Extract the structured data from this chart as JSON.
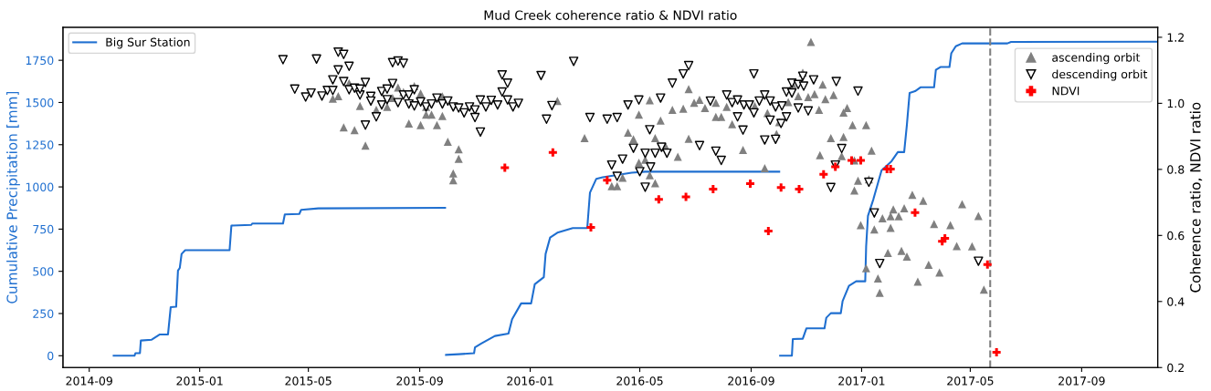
{
  "chart_data": {
    "type": "scatter",
    "title": "Mud Creek coherence ratio & NDVI ratio",
    "ylabel": "Cumulative Precipitation [mm]",
    "y2label": "Coherence ratio, NDVI ratio",
    "xlim": [
      "2014-08-03",
      "2017-11-24"
    ],
    "xticks": [
      {
        "value": "2014-09-01",
        "label": "2014-09"
      },
      {
        "value": "2015-01-01",
        "label": "2015-01"
      },
      {
        "value": "2015-05-01",
        "label": "2015-05"
      },
      {
        "value": "2015-09-01",
        "label": "2015-09"
      },
      {
        "value": "2016-01-01",
        "label": "2016-01"
      },
      {
        "value": "2016-05-01",
        "label": "2016-05"
      },
      {
        "value": "2016-09-01",
        "label": "2016-09"
      },
      {
        "value": "2017-01-01",
        "label": "2017-01"
      },
      {
        "value": "2017-05-01",
        "label": "2017-05"
      },
      {
        "value": "2017-09-01",
        "label": "2017-09"
      }
    ],
    "ylim": [
      -70,
      1945
    ],
    "yticks": [
      0,
      250,
      500,
      750,
      1000,
      1250,
      1500,
      1750
    ],
    "y2lim": [
      0.2,
      1.23
    ],
    "y2ticks": [
      0.2,
      0.4,
      0.6,
      0.8,
      {
        "value": 1.0,
        "label": "1.0"
      },
      1.2
    ],
    "legend": "top right",
    "grid": false,
    "ref_lines": [
      {
        "axis": "x",
        "value": "2017-05-23",
        "label": null,
        "color": "#808080",
        "line_style": "dashed"
      }
    ],
    "series": [
      {
        "name": "Big Sur Station",
        "type": "line",
        "axis": "y",
        "color": "#1f6fd0",
        "marker": "none",
        "line_style": "solid",
        "values": [
          0,
          0,
          15,
          15,
          90,
          95,
          126,
          126,
          288,
          290,
          504,
          520,
          603,
          625,
          625,
          771,
          775,
          783,
          783,
          837,
          840,
          864,
          873,
          876
        ],
        "x": [
          "2014-09-28",
          "2014-10-21",
          "2014-10-22",
          "2014-10-27",
          "2014-10-28",
          "2014-11-09",
          "2014-11-18",
          "2014-11-27",
          "2014-11-30",
          "2014-12-06",
          "2014-12-08",
          "2014-12-10",
          "2014-12-12",
          "2014-12-16",
          "2015-02-03",
          "2015-02-05",
          "2015-02-27",
          "2015-02-28",
          "2015-04-03",
          "2015-04-05",
          "2015-04-21",
          "2015-04-23",
          "2015-05-12",
          "2015-09-29"
        ]
      },
      {
        "type": "line",
        "axis": "y",
        "color": "#1f6fd0",
        "marker": "none",
        "line_style": "solid",
        "x": [
          "2015-09-30",
          "2015-10-14",
          "2015-10-31",
          "2015-11-01",
          "2015-11-08",
          "2015-11-23",
          "2015-12-08",
          "2015-12-12",
          "2015-12-22",
          "2016-01-02",
          "2016-01-06",
          "2016-01-16",
          "2016-01-18",
          "2016-01-23",
          "2016-01-31",
          "2016-02-17",
          "2016-03-04",
          "2016-03-07",
          "2016-03-14",
          "2016-03-21",
          "2016-04-22",
          "2016-05-07",
          "2016-10-02"
        ],
        "values": [
          5,
          9,
          15,
          50,
          72,
          117,
          131,
          216,
          310,
          310,
          423,
          465,
          603,
          700,
          729,
          756,
          756,
          966,
          1048,
          1057,
          1084,
          1090,
          1090
        ]
      },
      {
        "type": "line",
        "axis": "y",
        "color": "#1f6fd0",
        "marker": "none",
        "line_style": "solid",
        "x": [
          "2016-10-03",
          "2016-10-16",
          "2016-10-17",
          "2016-10-28",
          "2016-11-01",
          "2016-11-21",
          "2016-11-23",
          "2016-11-28",
          "2016-12-09",
          "2016-12-11",
          "2016-12-18",
          "2016-12-26",
          "2017-01-05",
          "2017-01-06",
          "2017-01-08",
          "2017-01-14",
          "2017-01-23",
          "2017-02-03",
          "2017-02-10",
          "2017-02-17",
          "2017-02-20",
          "2017-02-23",
          "2017-03-01",
          "2017-03-07",
          "2017-03-22",
          "2017-03-24",
          "2017-03-29",
          "2017-04-08",
          "2017-04-10",
          "2017-04-15",
          "2017-04-22",
          "2017-06-11",
          "2017-06-15",
          "2017-11-24"
        ],
        "values": [
          0,
          0,
          99,
          101,
          162,
          162,
          225,
          252,
          252,
          324,
          414,
          441,
          441,
          648,
          828,
          927,
          1098,
          1152,
          1206,
          1206,
          1368,
          1557,
          1567,
          1590,
          1590,
          1693,
          1710,
          1710,
          1791,
          1833,
          1850,
          1850,
          1859,
          1860
        ]
      },
      {
        "name": "ascending orbit",
        "axis": "y2",
        "color": "#808080",
        "marker": "triangle",
        "x": [
          "2015-05-28",
          "2015-06-03",
          "2015-06-15",
          "2015-06-09",
          "2015-06-21",
          "2015-06-27",
          "2015-07-03",
          "2015-07-15",
          "2015-07-27",
          "2015-08-02",
          "2015-08-08",
          "2015-08-14",
          "2015-08-26",
          "2015-09-02",
          "2015-08-20",
          "2015-09-02",
          "2015-09-08",
          "2015-09-08",
          "2015-09-14",
          "2015-09-20",
          "2015-09-26",
          "2015-09-26",
          "2015-10-02",
          "2015-10-08",
          "2015-10-08",
          "2015-10-14",
          "2015-10-14",
          "2016-01-31",
          "2016-03-01",
          "2016-03-31",
          "2016-04-06",
          "2016-04-12",
          "2016-04-18",
          "2016-04-24",
          "2016-04-30",
          "2016-04-30",
          "2016-05-07",
          "2016-05-12",
          "2016-05-12",
          "2016-05-18",
          "2016-05-18",
          "2016-05-24",
          "2016-05-30",
          "2016-06-06",
          "2016-06-12",
          "2016-06-18",
          "2016-06-24",
          "2016-06-24",
          "2016-06-30",
          "2016-07-06",
          "2016-07-12",
          "2016-07-24",
          "2016-07-24",
          "2016-07-30",
          "2016-08-05",
          "2016-08-11",
          "2016-08-23",
          "2016-09-05",
          "2016-09-16",
          "2016-09-19",
          "2016-09-29",
          "2016-10-02",
          "2016-10-12",
          "2016-10-17",
          "2016-10-23",
          "2016-10-28",
          "2016-11-03",
          "2016-11-06",
          "2016-11-10",
          "2016-11-15",
          "2016-11-16",
          "2016-11-19",
          "2016-11-22",
          "2016-12-01",
          "2016-12-16",
          "2016-12-12",
          "2016-12-22",
          "2017-01-06",
          "2016-11-28",
          "2016-12-12",
          "2016-12-10",
          "2016-12-24",
          "2017-01-12",
          "2016-12-28",
          "2016-12-24",
          "2017-01-09",
          "2016-12-31",
          "2017-01-15",
          "2017-01-24",
          "2017-02-02",
          "2017-02-05",
          "2017-02-11",
          "2017-02-02",
          "2017-02-17",
          "2017-02-26",
          "2017-03-10",
          "2017-03-22",
          "2017-04-09",
          "2017-04-22",
          "2017-05-10",
          "2017-04-16",
          "2017-05-03",
          "2017-01-06",
          "2017-01-30",
          "2017-02-14",
          "2017-02-20",
          "2017-01-19",
          "2017-01-21",
          "2017-03-04",
          "2017-03-16",
          "2017-03-28",
          "2017-05-16"
        ],
        "values": [
          1.014,
          1.022,
          1.061,
          0.927,
          0.919,
          0.992,
          0.872,
          0.98,
          0.989,
          1.016,
          1.048,
          1.034,
          1.052,
          1.03,
          0.939,
          0.934,
          0.966,
          0.989,
          0.966,
          0.934,
          1.021,
          0.962,
          0.884,
          0.788,
          0.767,
          0.861,
          0.832,
          1.007,
          0.895,
          0.749,
          0.749,
          0.775,
          0.911,
          0.891,
          0.966,
          0.82,
          0.829,
          1.009,
          0.782,
          0.895,
          0.758,
          0.948,
          0.867,
          0.98,
          0.838,
          0.984,
          1.043,
          0.893,
          1.002,
          1.011,
          0.986,
          1.002,
          0.959,
          0.959,
          0.989,
          0.937,
          0.859,
          0.992,
          0.804,
          0.971,
          0.907,
          0.943,
          1.004,
          1.057,
          1.022,
          1.093,
          1.019,
          1.186,
          1.028,
          0.98,
          0.843,
          1.057,
          1.013,
          1.025,
          0.986,
          0.972,
          0.934,
          0.934,
          0.895,
          0.898,
          0.84,
          0.827,
          0.857,
          0.766,
          0.736,
          0.77,
          0.631,
          0.618,
          0.652,
          0.658,
          0.679,
          0.658,
          0.623,
          0.682,
          0.723,
          0.705,
          0.635,
          0.631,
          0.695,
          0.659,
          0.568,
          0.567,
          0.501,
          0.547,
          0.553,
          0.536,
          0.47,
          0.426,
          0.46,
          0.511,
          0.488,
          0.436
        ]
      },
      {
        "name": "descending orbit",
        "axis": "y2",
        "color": "#000000",
        "marker": "triangle_down",
        "x": [
          "2015-04-03",
          "2015-04-16",
          "2015-04-28",
          "2015-05-04",
          "2015-05-10",
          "2015-05-16",
          "2015-05-22",
          "2015-05-28",
          "2015-05-28",
          "2015-06-03",
          "2015-06-03",
          "2015-06-09",
          "2015-06-09",
          "2015-06-15",
          "2015-06-15",
          "2015-06-21",
          "2015-06-27",
          "2015-06-27",
          "2015-07-03",
          "2015-07-03",
          "2015-07-09",
          "2015-07-09",
          "2015-07-15",
          "2015-07-21",
          "2015-07-21",
          "2015-07-27",
          "2015-07-27",
          "2015-08-02",
          "2015-08-02",
          "2015-08-08",
          "2015-08-08",
          "2015-08-14",
          "2015-08-14",
          "2015-08-20",
          "2015-08-20",
          "2015-08-26",
          "2015-08-26",
          "2015-09-02",
          "2015-09-08",
          "2015-09-14",
          "2015-09-20",
          "2015-09-26",
          "2015-10-02",
          "2015-10-08",
          "2015-10-14",
          "2015-10-20",
          "2015-10-26",
          "2015-11-01",
          "2015-11-01",
          "2015-11-07",
          "2015-11-07",
          "2015-11-13",
          "2015-11-19",
          "2015-11-26",
          "2015-12-01",
          "2015-12-01",
          "2015-12-07",
          "2015-12-07",
          "2015-12-13",
          "2015-12-19",
          "2016-01-13",
          "2016-01-19",
          "2016-01-25",
          "2016-02-18",
          "2016-03-07",
          "2016-03-26",
          "2016-03-31",
          "2016-04-06",
          "2016-04-06",
          "2016-04-12",
          "2016-04-18",
          "2016-04-24",
          "2016-04-30",
          "2016-05-01",
          "2016-05-07",
          "2016-05-07",
          "2016-05-12",
          "2016-05-13",
          "2016-05-18",
          "2016-05-24",
          "2016-05-25",
          "2016-05-31",
          "2016-06-06",
          "2016-06-18",
          "2016-06-24",
          "2016-07-06",
          "2016-07-18",
          "2016-07-24",
          "2016-07-30",
          "2016-08-05",
          "2016-08-11",
          "2016-08-17",
          "2016-08-17",
          "2016-08-23",
          "2016-08-24",
          "2016-08-30",
          "2016-09-04",
          "2016-09-04",
          "2016-09-10",
          "2016-09-16",
          "2016-09-16",
          "2016-09-22",
          "2016-09-22",
          "2016-09-28",
          "2016-09-28",
          "2016-10-04",
          "2016-10-05",
          "2016-10-10",
          "2016-10-10",
          "2016-10-16",
          "2016-10-16",
          "2016-10-23",
          "2016-10-23",
          "2016-10-28",
          "2016-10-29",
          "2016-11-03",
          "2016-11-09",
          "2016-12-04",
          "2016-12-28",
          "2016-12-10",
          "2016-12-03",
          "2016-11-28",
          "2017-01-09",
          "2017-01-15",
          "2017-01-21",
          "2017-05-10"
        ],
        "values": [
          1.132,
          1.043,
          1.019,
          1.031,
          1.134,
          1.022,
          1.039,
          1.039,
          1.071,
          1.155,
          1.101,
          1.148,
          1.066,
          1.112,
          1.041,
          1.046,
          1.025,
          1.043,
          1.063,
          0.934,
          1.021,
          1.007,
          0.959,
          1.036,
          0.995,
          1.043,
          1.011,
          1.06,
          1.123,
          1.128,
          1.002,
          1.121,
          1.025,
          1.025,
          0.998,
          1.041,
          0.992,
          1.004,
          0.989,
          0.998,
          1.016,
          0.998,
          1.007,
          0.989,
          0.986,
          0.971,
          0.989,
          0.98,
          0.957,
          0.913,
          1.01,
          0.989,
          1.009,
          0.995,
          1.086,
          1.034,
          1.061,
          1.01,
          0.989,
          1.0,
          1.084,
          0.952,
          0.993,
          1.127,
          0.957,
          0.952,
          0.813,
          0.957,
          0.779,
          0.831,
          0.995,
          0.864,
          1.01,
          0.793,
          0.849,
          0.746,
          0.92,
          0.807,
          0.849,
          1.016,
          0.867,
          0.849,
          1.061,
          1.089,
          1.114,
          0.872,
          1.007,
          0.855,
          0.827,
          1.025,
          1.002,
          1.01,
          0.959,
          0.919,
          0.995,
          0.995,
          1.089,
          0.971,
          1.007,
          1.025,
          0.889,
          1.007,
          0.949,
          0.989,
          0.891,
          0.939,
          0.992,
          0.959,
          1.034,
          1.061,
          1.031,
          0.986,
          1.057,
          1.082,
          1.052,
          0.977,
          1.071,
          1.066,
          1.037,
          0.863,
          0.813,
          0.745,
          0.761,
          0.668,
          0.515,
          0.522
        ]
      },
      {
        "name": "NDVI",
        "axis": "y2",
        "color": "#ff0000",
        "marker": "cross",
        "x": [
          "2015-12-04",
          "2016-01-26",
          "2016-03-08",
          "2016-03-26",
          "2016-05-22",
          "2016-06-21",
          "2016-07-21",
          "2016-08-31",
          "2016-09-20",
          "2016-10-04",
          "2016-10-24",
          "2016-11-20",
          "2016-12-03",
          "2016-12-21",
          "2016-12-31",
          "2017-01-29",
          "2017-02-02",
          "2017-03-01",
          "2017-03-31",
          "2017-04-03",
          "2017-05-20",
          "2017-05-30"
        ],
        "values": [
          0.805,
          0.851,
          0.624,
          0.767,
          0.709,
          0.717,
          0.74,
          0.757,
          0.613,
          0.745,
          0.74,
          0.785,
          0.808,
          0.827,
          0.827,
          0.801,
          0.801,
          0.669,
          0.582,
          0.591,
          0.512,
          0.246
        ]
      }
    ]
  }
}
